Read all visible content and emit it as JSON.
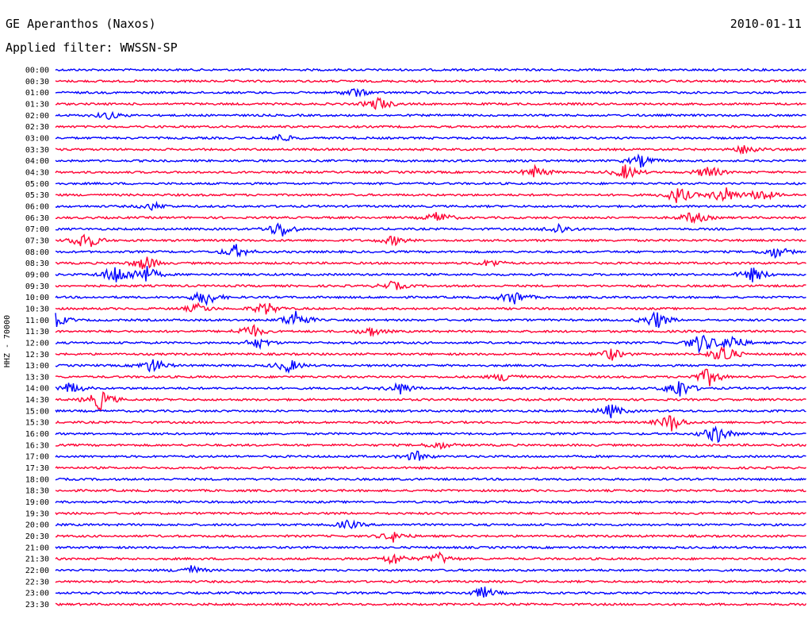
{
  "header": {
    "title": "GE Aperanthos (Naxos)",
    "date": "2010-01-11",
    "filter": "Applied filter: WWSSN-SP"
  },
  "side_label": "HHZ - 70000",
  "colors": {
    "even_rows": "#0000ff",
    "odd_rows": "#ff0033",
    "background": "#ffffff"
  },
  "chart_data": {
    "type": "line",
    "title": "GE Aperanthos (Naxos)",
    "subtitle": "Applied filter: WWSSN-SP",
    "ylabel": "HHZ - 70000",
    "rows": [
      "00:00",
      "00:30",
      "01:00",
      "01:30",
      "02:00",
      "02:30",
      "03:00",
      "03:30",
      "04:00",
      "04:30",
      "05:00",
      "05:30",
      "06:00",
      "06:30",
      "07:00",
      "07:30",
      "08:00",
      "08:30",
      "09:00",
      "09:30",
      "10:00",
      "10:30",
      "11:00",
      "11:30",
      "12:00",
      "12:30",
      "13:00",
      "13:30",
      "14:00",
      "14:30",
      "15:00",
      "15:30",
      "16:00",
      "16:30",
      "17:00",
      "17:30",
      "18:00",
      "18:30",
      "19:00",
      "19:30",
      "20:00",
      "20:30",
      "21:00",
      "21:30",
      "22:00",
      "22:30",
      "23:00",
      "23:30"
    ],
    "row_minutes": 30,
    "grid": false,
    "legend": "none",
    "events": [
      {
        "row": 2,
        "at": 0.4,
        "amp": 6
      },
      {
        "row": 3,
        "at": 0.43,
        "amp": 9
      },
      {
        "row": 4,
        "at": 0.07,
        "amp": 5
      },
      {
        "row": 6,
        "at": 0.3,
        "amp": 5
      },
      {
        "row": 7,
        "at": 0.92,
        "amp": 7
      },
      {
        "row": 8,
        "at": 0.78,
        "amp": 8
      },
      {
        "row": 9,
        "at": 0.64,
        "amp": 8
      },
      {
        "row": 9,
        "at": 0.76,
        "amp": 10
      },
      {
        "row": 9,
        "at": 0.87,
        "amp": 9
      },
      {
        "row": 11,
        "at": 0.83,
        "amp": 12
      },
      {
        "row": 11,
        "at": 0.89,
        "amp": 12
      },
      {
        "row": 11,
        "at": 0.94,
        "amp": 9
      },
      {
        "row": 12,
        "at": 0.13,
        "amp": 5
      },
      {
        "row": 13,
        "at": 0.51,
        "amp": 8
      },
      {
        "row": 13,
        "at": 0.85,
        "amp": 9
      },
      {
        "row": 14,
        "at": 0.3,
        "amp": 12
      },
      {
        "row": 14,
        "at": 0.67,
        "amp": 7
      },
      {
        "row": 15,
        "at": 0.04,
        "amp": 14
      },
      {
        "row": 15,
        "at": 0.45,
        "amp": 6
      },
      {
        "row": 16,
        "at": 0.24,
        "amp": 9
      },
      {
        "row": 16,
        "at": 0.96,
        "amp": 8
      },
      {
        "row": 17,
        "at": 0.12,
        "amp": 10
      },
      {
        "row": 17,
        "at": 0.58,
        "amp": 5
      },
      {
        "row": 18,
        "at": 0.08,
        "amp": 14
      },
      {
        "row": 18,
        "at": 0.12,
        "amp": 12
      },
      {
        "row": 18,
        "at": 0.93,
        "amp": 10
      },
      {
        "row": 19,
        "at": 0.45,
        "amp": 6
      },
      {
        "row": 20,
        "at": 0.2,
        "amp": 11
      },
      {
        "row": 20,
        "at": 0.61,
        "amp": 10
      },
      {
        "row": 21,
        "at": 0.19,
        "amp": 6
      },
      {
        "row": 21,
        "at": 0.28,
        "amp": 9
      },
      {
        "row": 22,
        "at": 0.0,
        "amp": 9
      },
      {
        "row": 22,
        "at": 0.32,
        "amp": 13
      },
      {
        "row": 22,
        "at": 0.8,
        "amp": 12
      },
      {
        "row": 23,
        "at": 0.26,
        "amp": 10
      },
      {
        "row": 23,
        "at": 0.42,
        "amp": 6
      },
      {
        "row": 24,
        "at": 0.27,
        "amp": 7
      },
      {
        "row": 24,
        "at": 0.86,
        "amp": 14
      },
      {
        "row": 24,
        "at": 0.9,
        "amp": 12
      },
      {
        "row": 25,
        "at": 0.74,
        "amp": 8
      },
      {
        "row": 25,
        "at": 0.89,
        "amp": 14
      },
      {
        "row": 26,
        "at": 0.13,
        "amp": 10
      },
      {
        "row": 26,
        "at": 0.31,
        "amp": 9
      },
      {
        "row": 27,
        "at": 0.6,
        "amp": 7
      },
      {
        "row": 27,
        "at": 0.87,
        "amp": 12
      },
      {
        "row": 28,
        "at": 0.02,
        "amp": 8
      },
      {
        "row": 28,
        "at": 0.46,
        "amp": 8
      },
      {
        "row": 28,
        "at": 0.83,
        "amp": 14
      },
      {
        "row": 29,
        "at": 0.06,
        "amp": 14
      },
      {
        "row": 30,
        "at": 0.74,
        "amp": 9
      },
      {
        "row": 31,
        "at": 0.82,
        "amp": 12
      },
      {
        "row": 32,
        "at": 0.88,
        "amp": 13
      },
      {
        "row": 33,
        "at": 0.51,
        "amp": 5
      },
      {
        "row": 34,
        "at": 0.48,
        "amp": 7
      },
      {
        "row": 40,
        "at": 0.39,
        "amp": 6
      },
      {
        "row": 41,
        "at": 0.45,
        "amp": 7
      },
      {
        "row": 43,
        "at": 0.45,
        "amp": 8
      },
      {
        "row": 43,
        "at": 0.51,
        "amp": 8
      },
      {
        "row": 44,
        "at": 0.18,
        "amp": 6
      },
      {
        "row": 46,
        "at": 0.57,
        "amp": 8
      }
    ]
  }
}
